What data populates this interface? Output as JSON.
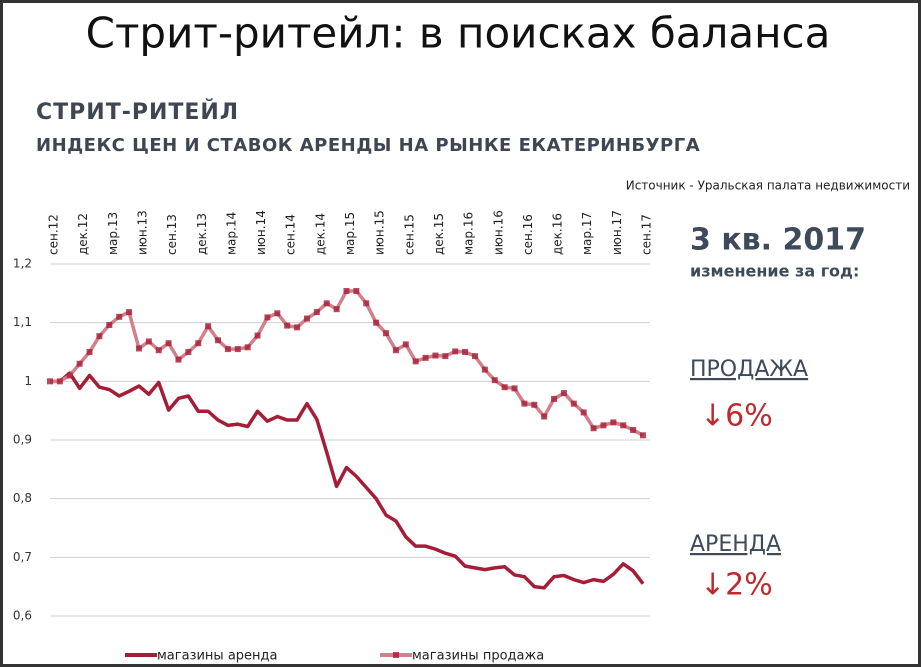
{
  "slide_title": "Стрит-ритейл: в поисках баланса",
  "chart_data": {
    "type": "line",
    "title": "СТРИТ-РИТЕЙЛ",
    "subtitle": "ИНДЕКС ЦЕН И СТАВОК АРЕНДЫ НА РЫНКЕ ЕКАТЕРИНБУРГА",
    "source": "Источник - Уральская палата недвижимости",
    "annotations": [
      "3 кв. 2017",
      "изменение за год:",
      "ПРОДАЖА",
      "↓6%",
      "АРЕНДА",
      "↓2%"
    ],
    "categories": [
      "сен.12",
      null,
      null,
      "дек.12",
      null,
      null,
      "мар.13",
      null,
      null,
      "июн.13",
      null,
      null,
      "сен.13",
      null,
      null,
      "дек.13",
      null,
      null,
      "мар.14",
      null,
      null,
      "июн.14",
      null,
      null,
      "сен.14",
      null,
      null,
      "дек.14",
      null,
      null,
      "мар.15",
      null,
      null,
      "июн.15",
      null,
      null,
      "сен.15",
      null,
      null,
      "дек.15",
      null,
      null,
      "мар.16",
      null,
      null,
      "июн.16",
      null,
      null,
      "сен.16",
      null,
      null,
      "дек.16",
      null,
      null,
      "мар.17",
      null,
      null,
      "июн.17",
      null,
      null,
      "сен.17"
    ],
    "series": [
      {
        "name": "магазины аренда",
        "color": "#a51d36",
        "marker": false,
        "values": [
          1.0,
          1.0,
          1.014,
          0.988,
          1.01,
          0.99,
          0.986,
          0.975,
          0.983,
          0.992,
          0.978,
          0.998,
          0.951,
          0.971,
          0.975,
          0.949,
          0.949,
          0.934,
          0.925,
          0.927,
          0.923,
          0.949,
          0.932,
          0.94,
          0.934,
          0.934,
          0.962,
          0.935,
          0.879,
          0.821,
          0.853,
          0.838,
          0.819,
          0.8,
          0.772,
          0.762,
          0.735,
          0.719,
          0.719,
          0.714,
          0.707,
          0.702,
          0.685,
          0.682,
          0.679,
          0.682,
          0.684,
          0.67,
          0.667,
          0.65,
          0.648,
          0.667,
          0.669,
          0.662,
          0.657,
          0.662,
          0.659,
          0.671,
          0.689,
          0.677,
          0.655
        ]
      },
      {
        "name": "магазины продажа",
        "color": "#d3808c",
        "marker": true,
        "values": [
          1.0,
          1.0,
          1.01,
          1.03,
          1.05,
          1.077,
          1.096,
          1.11,
          1.118,
          1.056,
          1.068,
          1.053,
          1.065,
          1.037,
          1.05,
          1.065,
          1.094,
          1.07,
          1.055,
          1.055,
          1.058,
          1.078,
          1.109,
          1.116,
          1.095,
          1.092,
          1.107,
          1.118,
          1.133,
          1.123,
          1.154,
          1.154,
          1.133,
          1.1,
          1.082,
          1.053,
          1.063,
          1.034,
          1.04,
          1.044,
          1.043,
          1.051,
          1.05,
          1.043,
          1.02,
          1.002,
          0.99,
          0.988,
          0.962,
          0.96,
          0.94,
          0.97,
          0.98,
          0.962,
          0.947,
          0.92,
          0.925,
          0.93,
          0.925,
          0.917,
          0.908
        ]
      }
    ],
    "ylim": [
      0.6,
      1.2
    ],
    "yticks": [
      {
        "value": 0.6,
        "label": "0,6"
      },
      {
        "value": 0.7,
        "label": "0,7"
      },
      {
        "value": 0.8,
        "label": "0,8"
      },
      {
        "value": 0.9,
        "label": "0,9"
      },
      1,
      {
        "value": 1.1,
        "label": "1,1"
      },
      {
        "value": 1.2,
        "label": "1,2"
      }
    ],
    "grid": true
  }
}
